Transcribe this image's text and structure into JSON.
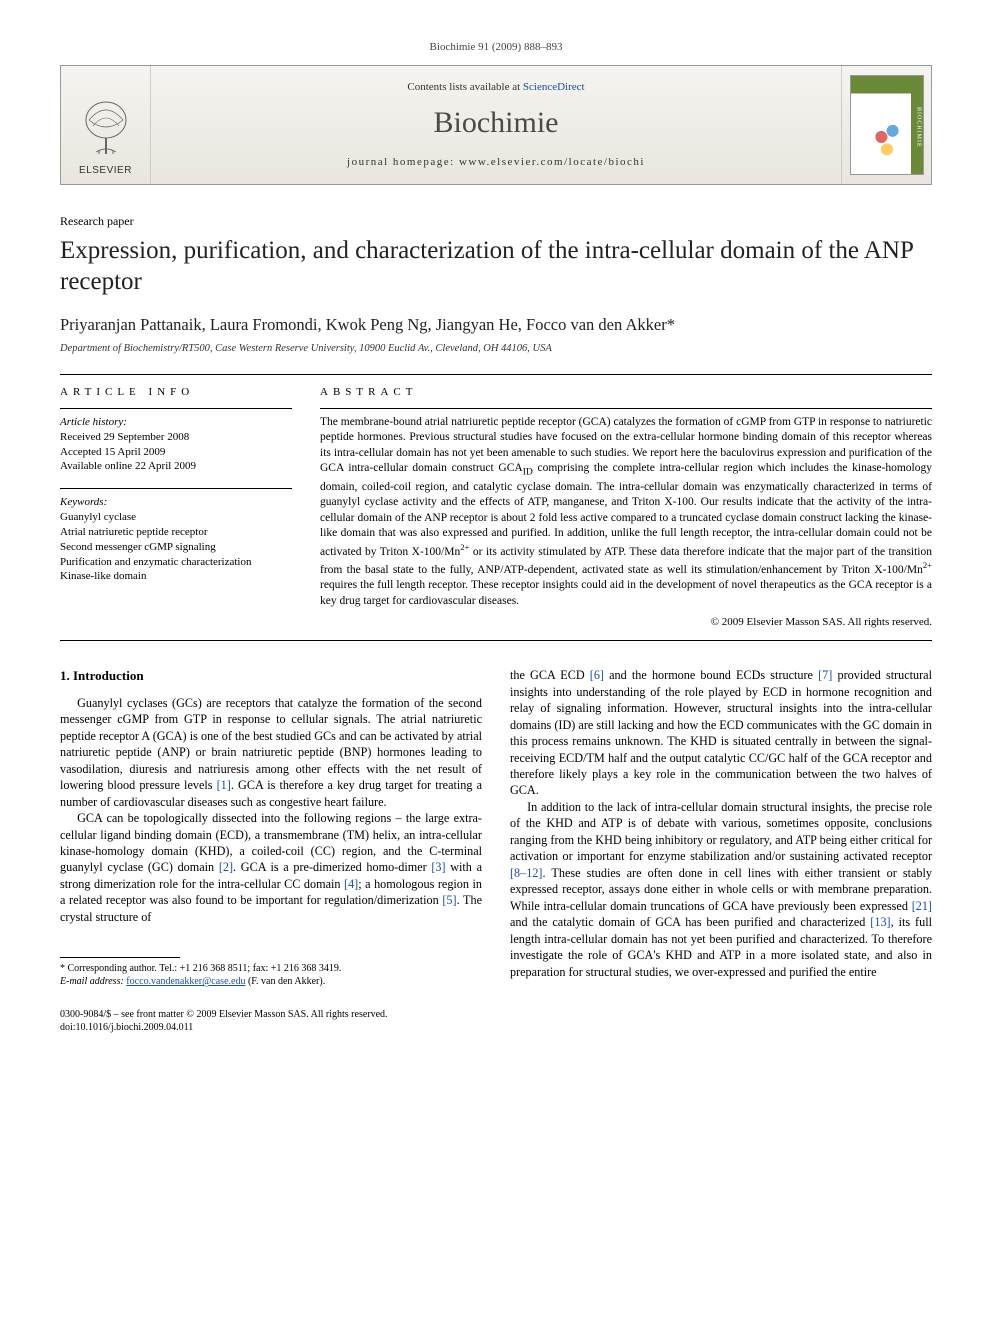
{
  "journal_ref": "Biochimie 91 (2009) 888–893",
  "banner": {
    "contents_prefix": "Contents lists available at ",
    "contents_link": "ScienceDirect",
    "journal_name": "Biochimie",
    "homepage_prefix": "journal homepage: ",
    "homepage_url": "www.elsevier.com/locate/biochi",
    "publisher_label": "ELSEVIER",
    "cover_side": "BIOCHIMIE"
  },
  "paper_type": "Research paper",
  "title": "Expression, purification, and characterization of the intra-cellular domain of the ANP receptor",
  "authors": "Priyaranjan Pattanaik, Laura Fromondi, Kwok Peng Ng, Jiangyan He, Focco van den Akker*",
  "affiliation": "Department of Biochemistry/RT500, Case Western Reserve University, 10900 Euclid Av., Cleveland, OH 44106, USA",
  "article_info_head": "ARTICLE INFO",
  "abstract_head": "ABSTRACT",
  "history_label": "Article history:",
  "history": {
    "received": "Received 29 September 2008",
    "accepted": "Accepted 15 April 2009",
    "online": "Available online 22 April 2009"
  },
  "keywords_label": "Keywords:",
  "keywords": [
    "Guanylyl cyclase",
    "Atrial natriuretic peptide receptor",
    "Second messenger cGMP signaling",
    "Purification and enzymatic characterization",
    "Kinase-like domain"
  ],
  "abstract_html": "The membrane-bound atrial natriuretic peptide receptor (GCA) catalyzes the formation of cGMP from GTP in response to natriuretic peptide hormones. Previous structural studies have focused on the extra-cellular hormone binding domain of this receptor whereas its intra-cellular domain has not yet been amenable to such studies. We report here the baculovirus expression and purification of the GCA intra-cellular domain construct GCA<sub>ID</sub> comprising the complete intra-cellular region which includes the kinase-homology domain, coiled-coil region, and catalytic cyclase domain. The intra-cellular domain was enzymatically characterized in terms of guanylyl cyclase activity and the effects of ATP, manganese, and Triton X-100. Our results indicate that the activity of the intra-cellular domain of the ANP receptor is about 2 fold less active compared to a truncated cyclase domain construct lacking the kinase-like domain that was also expressed and purified. In addition, unlike the full length receptor, the intra-cellular domain could not be activated by Triton X-100/Mn<sup>2+</sup> or its activity stimulated by ATP. These data therefore indicate that the major part of the transition from the basal state to the fully, ANP/ATP-dependent, activated state as well its stimulation/enhancement by Triton X-100/Mn<sup>2+</sup> requires the full length receptor. These receptor insights could aid in the development of novel therapeutics as the GCA receptor is a key drug target for cardiovascular diseases.",
  "copyright": "© 2009 Elsevier Masson SAS. All rights reserved.",
  "section_1_head": "1. Introduction",
  "para1": "Guanylyl cyclases (GCs) are receptors that catalyze the formation of the second messenger cGMP from GTP in response to cellular signals. The atrial natriuretic peptide receptor A (GCA) is one of the best studied GCs and can be activated by atrial natriuretic peptide (ANP) or brain natriuretic peptide (BNP) hormones leading to vasodilation, diuresis and natriuresis among other effects with the net result of lowering blood pressure levels <span class=\"ref\">[1]</span>. GCA is therefore a key drug target for treating a number of cardiovascular diseases such as congestive heart failure.",
  "para2": "GCA can be topologically dissected into the following regions – the large extra-cellular ligand binding domain (ECD), a transmembrane (TM) helix, an intra-cellular kinase-homology domain (KHD), a coiled-coil (CC) region, and the C-terminal guanylyl cyclase (GC) domain <span class=\"ref\">[2]</span>. GCA is a pre-dimerized homo-dimer <span class=\"ref\">[3]</span> with a strong dimerization role for the intra-cellular CC domain <span class=\"ref\">[4]</span>; a homologous region in a related receptor was also found to be important for regulation/dimerization <span class=\"ref\">[5]</span>. The crystal structure of",
  "para3": "the GCA ECD <span class=\"ref\">[6]</span> and the hormone bound ECDs structure <span class=\"ref\">[7]</span> provided structural insights into understanding of the role played by ECD in hormone recognition and relay of signaling information. However, structural insights into the intra-cellular domains (ID) are still lacking and how the ECD communicates with the GC domain in this process remains unknown. The KHD is situated centrally in between the signal-receiving ECD/TM half and the output catalytic CC/GC half of the GCA receptor and therefore likely plays a key role in the communication between the two halves of GCA.",
  "para4": "In addition to the lack of intra-cellular domain structural insights, the precise role of the KHD and ATP is of debate with various, sometimes opposite, conclusions ranging from the KHD being inhibitory or regulatory, and ATP being either critical for activation or important for enzyme stabilization and/or sustaining activated receptor <span class=\"ref\">[8–12]</span>. These studies are often done in cell lines with either transient or stably expressed receptor, assays done either in whole cells or with membrane preparation. While intra-cellular domain truncations of GCA have previously been expressed <span class=\"ref\">[21]</span> and the catalytic domain of GCA has been purified and characterized <span class=\"ref\">[13]</span>, its full length intra-cellular domain has not yet been purified and characterized. To therefore investigate the role of GCA's KHD and ATP in a more isolated state, and also in preparation for structural studies, we over-expressed and purified the entire",
  "footnote": {
    "corr_label": "* Corresponding author. Tel.: +1 216 368 8511; fax: +1 216 368 3419.",
    "email_label": "E-mail address:",
    "email": "focco.vandenakker@case.edu",
    "email_person": "(F. van den Akker)."
  },
  "doi": {
    "line1": "0300-9084/$ – see front matter © 2009 Elsevier Masson SAS. All rights reserved.",
    "line2": "doi:10.1016/j.biochi.2009.04.011"
  },
  "colors": {
    "link": "#1a4fa3",
    "text": "#000000",
    "banner_bg_top": "#f5f4f0",
    "banner_bg_bottom": "#e8e6de",
    "cover_green": "#6a8a3a"
  }
}
